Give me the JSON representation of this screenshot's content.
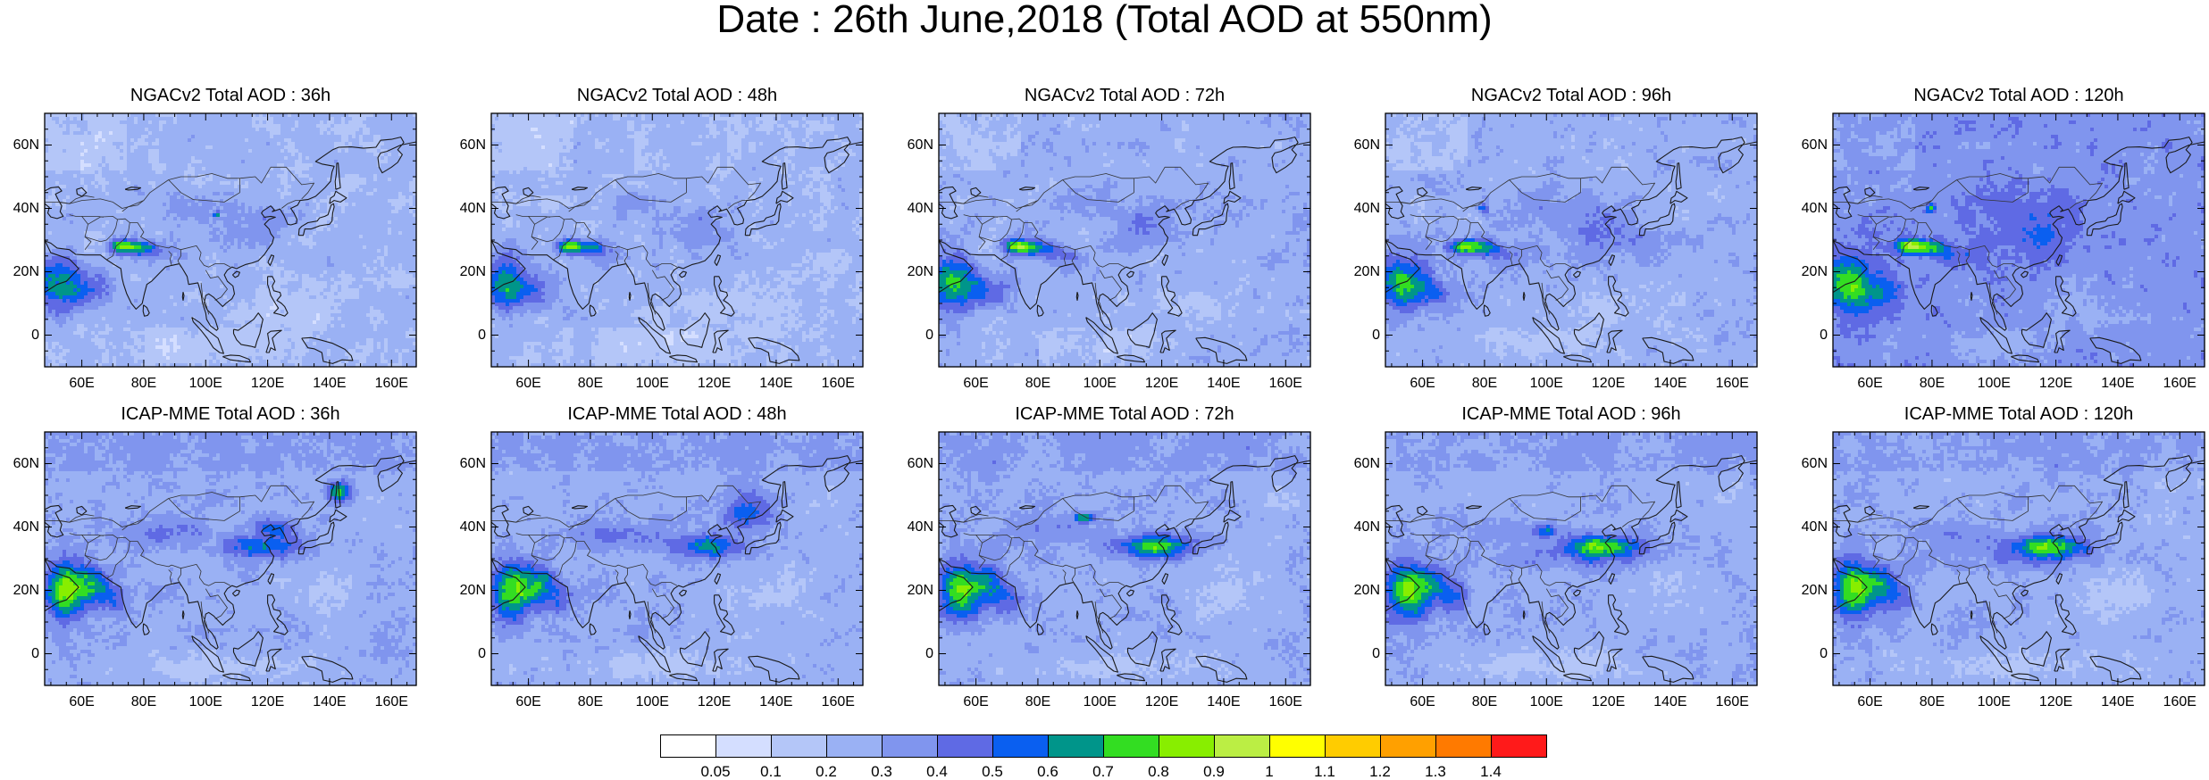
{
  "title": "Date : 26th June,2018 (Total AOD at 550nm)",
  "panels": [
    {
      "title": "NGACv2 Total AOD : 36h",
      "model": "ngac",
      "lead": 36
    },
    {
      "title": "NGACv2 Total AOD : 48h",
      "model": "ngac",
      "lead": 48
    },
    {
      "title": "NGACv2 Total AOD : 72h",
      "model": "ngac",
      "lead": 72
    },
    {
      "title": "NGACv2 Total AOD : 96h",
      "model": "ngac",
      "lead": 96
    },
    {
      "title": "NGACv2 Total AOD : 120h",
      "model": "ngac",
      "lead": 120
    },
    {
      "title": "ICAP-MME Total AOD : 36h",
      "model": "icap",
      "lead": 36
    },
    {
      "title": "ICAP-MME Total AOD : 48h",
      "model": "icap",
      "lead": 48
    },
    {
      "title": "ICAP-MME Total AOD : 72h",
      "model": "icap",
      "lead": 72
    },
    {
      "title": "ICAP-MME Total AOD : 96h",
      "model": "icap",
      "lead": 96
    },
    {
      "title": "ICAP-MME Total AOD : 120h",
      "model": "icap",
      "lead": 120
    }
  ],
  "map": {
    "lon_range": [
      48,
      168
    ],
    "lat_range": [
      -10,
      70
    ],
    "lat_ticks": [
      {
        "value": 60,
        "label": "60N"
      },
      {
        "value": 40,
        "label": "40N"
      },
      {
        "value": 20,
        "label": "20N"
      },
      {
        "value": 0,
        "label": "0"
      }
    ],
    "lon_ticks": [
      {
        "value": 60,
        "label": "60E"
      },
      {
        "value": 80,
        "label": "80E"
      },
      {
        "value": 100,
        "label": "100E"
      },
      {
        "value": 120,
        "label": "120E"
      },
      {
        "value": 140,
        "label": "140E"
      },
      {
        "value": 160,
        "label": "160E"
      }
    ]
  },
  "colorbar": {
    "labels": [
      "0.05",
      "0.1",
      "0.2",
      "0.3",
      "0.4",
      "0.5",
      "0.6",
      "0.7",
      "0.8",
      "0.9",
      "1",
      "1.1",
      "1.2",
      "1.3",
      "1.4"
    ],
    "colors": [
      "#ffffff",
      "#d4deff",
      "#b4c6f8",
      "#9ab1f4",
      "#8095ee",
      "#5f6ae4",
      "#0a5ff0",
      "#00958a",
      "#33dd22",
      "#88ee00",
      "#bbee44",
      "#ffff00",
      "#ffcc00",
      "#ffa000",
      "#ff7a00",
      "#ff1a1a"
    ]
  }
}
